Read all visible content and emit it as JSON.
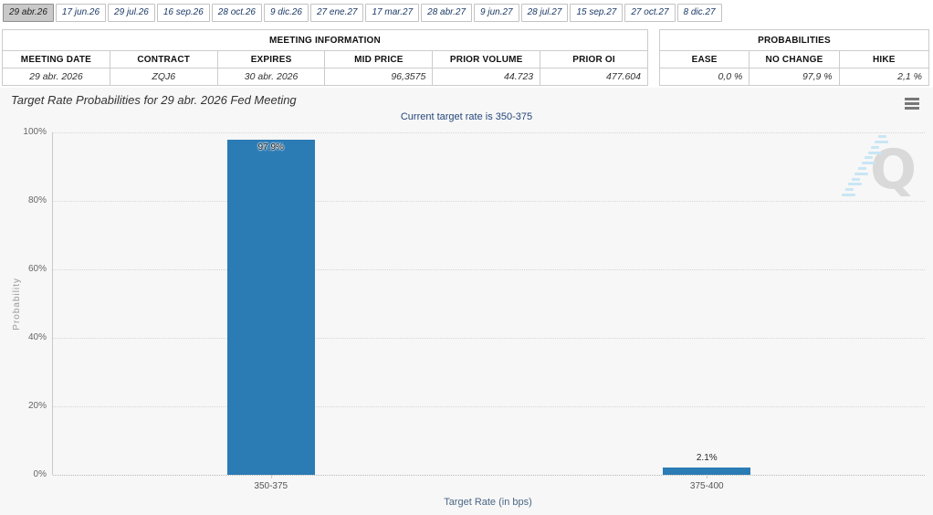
{
  "tabs": {
    "items": [
      {
        "label": "29 abr.26",
        "selected": true
      },
      {
        "label": "17 jun.26",
        "selected": false
      },
      {
        "label": "29 jul.26",
        "selected": false
      },
      {
        "label": "16 sep.26",
        "selected": false
      },
      {
        "label": "28 oct.26",
        "selected": false
      },
      {
        "label": "9 dic.26",
        "selected": false
      },
      {
        "label": "27 ene.27",
        "selected": false
      },
      {
        "label": "17 mar.27",
        "selected": false
      },
      {
        "label": "28 abr.27",
        "selected": false
      },
      {
        "label": "9 jun.27",
        "selected": false
      },
      {
        "label": "28 jul.27",
        "selected": false
      },
      {
        "label": "15 sep.27",
        "selected": false
      },
      {
        "label": "27 oct.27",
        "selected": false
      },
      {
        "label": "8 dic.27",
        "selected": false
      }
    ]
  },
  "meeting_info": {
    "title": "MEETING INFORMATION",
    "columns": [
      "MEETING DATE",
      "CONTRACT",
      "EXPIRES",
      "MID PRICE",
      "PRIOR VOLUME",
      "PRIOR OI"
    ],
    "values": [
      "29 abr. 2026",
      "ZQJ6",
      "30 abr. 2026",
      "96,3575",
      "44.723",
      "477.604"
    ]
  },
  "probabilities": {
    "title": "PROBABILITIES",
    "columns": [
      "EASE",
      "NO CHANGE",
      "HIKE"
    ],
    "values": [
      "0,0 %",
      "97,9 %",
      "2,1 %"
    ]
  },
  "chart": {
    "title": "Target Rate Probabilities for 29 abr. 2026 Fed Meeting",
    "subtitle": "Current target rate is 350-375",
    "menu_icon": "hamburger-icon",
    "watermark_letter": "Q"
  },
  "chart_data": {
    "type": "bar",
    "categories": [
      "350-375",
      "375-400"
    ],
    "values": [
      97.9,
      2.1
    ],
    "value_labels": [
      "97.9%",
      "2.1%"
    ],
    "title": "Target Rate Probabilities for 29 abr. 2026 Fed Meeting",
    "subtitle": "Current target rate is 350-375",
    "xlabel": "Target Rate (in bps)",
    "ylabel": "Probability",
    "ylim": [
      0,
      100
    ],
    "ytick_values": [
      0,
      20,
      40,
      60,
      80,
      100
    ],
    "ytick_labels": [
      "0%",
      "20%",
      "40%",
      "60%",
      "80%",
      "100%"
    ],
    "grid": "dotted-horizontal",
    "legend": "none",
    "bar_color": "#2b7bb4"
  },
  "colors": {
    "bar": "#2b7bb4",
    "panel_bg": "#f7f7f7",
    "selected_tab_bg": "#c9c9c9",
    "tab_text": "#1b3a66",
    "subtitle_text": "#25477b",
    "watermark_gray": "#d9d9d9",
    "watermark_blue": "#c9e6f4"
  }
}
